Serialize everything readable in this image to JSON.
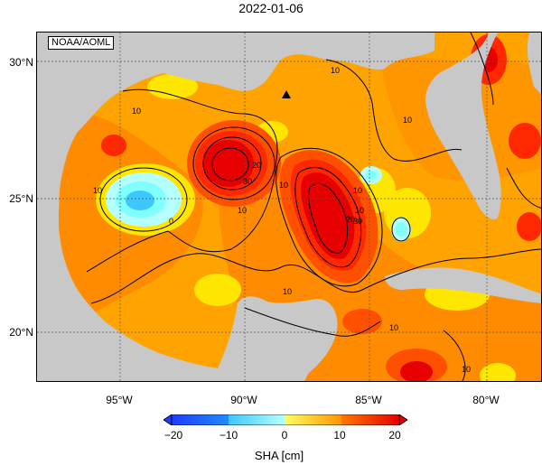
{
  "header": {
    "title": "2022-01-06"
  },
  "map": {
    "credit": "NOAA/AOML",
    "land_color": "#c8c8c8",
    "lat_labels": [
      "30°N",
      "25°N",
      "20°N"
    ],
    "lon_labels": [
      "95°W",
      "90°W",
      "85°W",
      "80°W"
    ],
    "marker": "triangle-marker",
    "contour_labels": [
      "10",
      "10",
      "10",
      "10",
      "10",
      "0",
      "10",
      "30",
      "20",
      "10",
      "20",
      "30",
      "10",
      "10",
      "10",
      "10"
    ]
  },
  "colorbar": {
    "ticks": [
      "−20",
      "−10",
      "0",
      "10",
      "20"
    ],
    "label": "SHA [cm]",
    "colors": [
      "#1e3cff",
      "#1e8cff",
      "#3cc8ff",
      "#7fffff",
      "#b4ffff",
      "#ffff64",
      "#ffe600",
      "#ffbe00",
      "#ff9600",
      "#ff7800",
      "#ff5000",
      "#ff2800",
      "#e60000"
    ]
  }
}
